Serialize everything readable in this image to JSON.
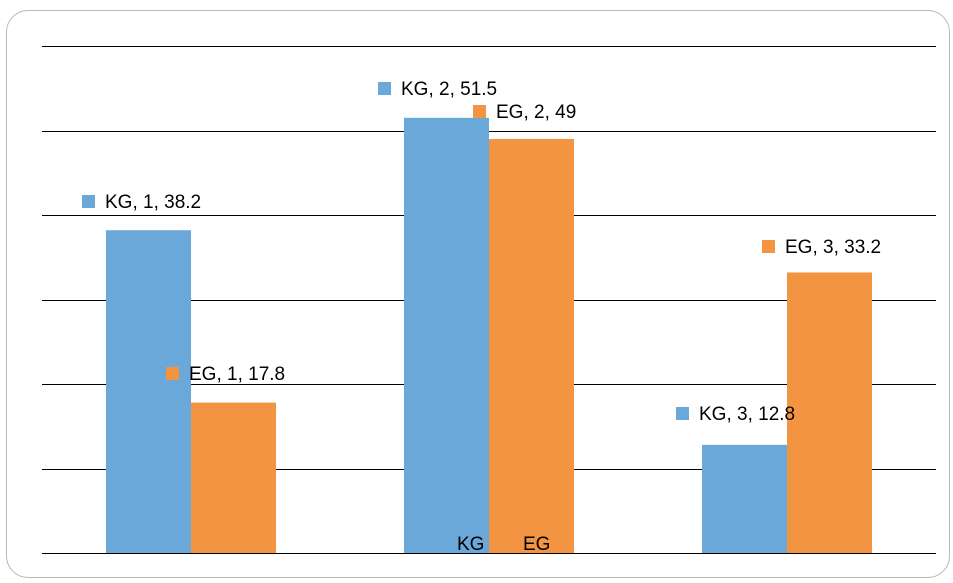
{
  "chart_data": {
    "type": "bar",
    "categories": [
      "1",
      "2",
      "3"
    ],
    "series": [
      {
        "name": "KG",
        "values": [
          38.2,
          51.5,
          12.8
        ],
        "color": "#6aa8da"
      },
      {
        "name": "EG",
        "values": [
          17.8,
          49,
          33.2
        ],
        "color": "#f39443"
      }
    ],
    "data_labels": [
      [
        "KG, 1, 38.2",
        "KG, 2, 51.5",
        "KG, 3, 12.8"
      ],
      [
        "EG, 1, 17.8",
        "EG, 2, 49",
        "EG, 3, 33.2"
      ]
    ],
    "axis_labels": [
      "KG",
      "EG"
    ],
    "ylim": [
      0,
      60
    ],
    "grid": true,
    "gridline_color": "#000000",
    "xlabel": "",
    "ylabel": "",
    "title": ""
  }
}
